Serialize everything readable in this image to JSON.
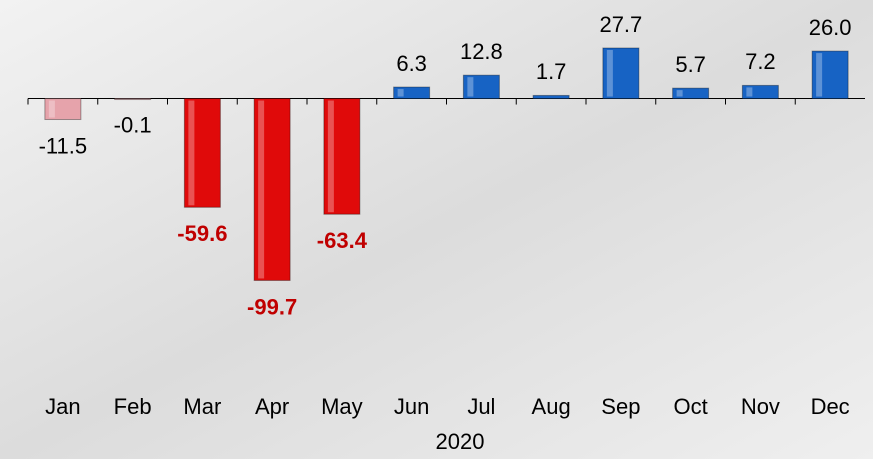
{
  "chart_data": {
    "type": "bar",
    "x_label": "2020",
    "categories": [
      "Jan",
      "Feb",
      "Mar",
      "Apr",
      "May",
      "Jun",
      "Jul",
      "Aug",
      "Sep",
      "Oct",
      "Nov",
      "Dec"
    ],
    "values": [
      -11.5,
      -0.1,
      -59.6,
      -99.7,
      -63.4,
      6.3,
      12.8,
      1.7,
      27.7,
      5.7,
      7.2,
      26.0
    ],
    "value_labels": [
      "-11.5",
      "-0.1",
      "-59.6",
      "-99.7",
      "-63.4",
      "6.3",
      "12.8",
      "1.7",
      "27.7",
      "5.7",
      "7.2",
      "26.0"
    ],
    "colors": [
      "#e6a3ab",
      "#e6a3ab",
      "#e00a0a",
      "#e00a0a",
      "#e00a0a",
      "#1763c4",
      "#1763c4",
      "#1763c4",
      "#1763c4",
      "#1763c4",
      "#1763c4",
      "#1763c4"
    ],
    "highlight_label_color": "#c00000",
    "ylim": [
      -140,
      54
    ]
  }
}
